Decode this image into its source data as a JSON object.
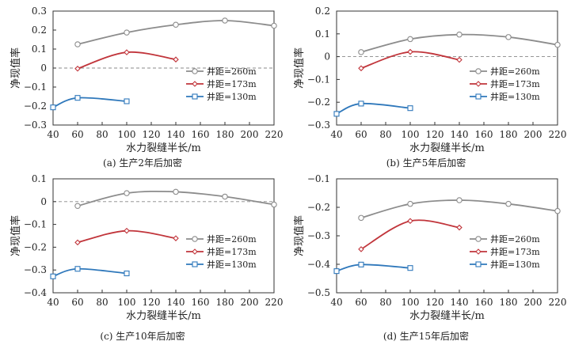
{
  "colors": {
    "s260": "#8c8c8c",
    "s173": "#c1353b",
    "s130": "#2f78bb",
    "axis": "#333333",
    "zero_line": "#888888"
  },
  "chart_data": [
    {
      "type": "line",
      "caption": "(a) 生产2年后加密",
      "xlabel": "水力裂缝半长/m",
      "ylabel": "净现值率",
      "xlim": [
        40,
        220
      ],
      "ylim": [
        -0.3,
        0.3
      ],
      "xticks": [
        "40",
        "60",
        "80",
        "100",
        "120",
        "140",
        "160",
        "180",
        "200",
        "220"
      ],
      "yticks": [
        "-0.3",
        "-0.2",
        "-0.1",
        "0",
        "0.1",
        "0.2",
        "0.3"
      ],
      "zero_line": true,
      "legend": "right-middle",
      "smooth": true,
      "series": [
        {
          "name": "井距=260m",
          "marker": "circle",
          "x": [
            60,
            100,
            140,
            180,
            220
          ],
          "y": [
            0.125,
            0.187,
            0.228,
            0.25,
            0.223
          ]
        },
        {
          "name": "井距=173m",
          "marker": "diamond",
          "x": [
            60,
            100,
            140
          ],
          "y": [
            -0.003,
            0.083,
            0.045
          ]
        },
        {
          "name": "井距=130m",
          "marker": "square",
          "x": [
            40,
            60,
            100
          ],
          "y": [
            -0.207,
            -0.157,
            -0.175
          ]
        }
      ]
    },
    {
      "type": "line",
      "caption": "(b) 生产5年后加密",
      "xlabel": "水力裂缝半长/m",
      "ylabel": "净现值率",
      "xlim": [
        40,
        220
      ],
      "ylim": [
        -0.3,
        0.2
      ],
      "xticks": [
        "40",
        "60",
        "80",
        "100",
        "120",
        "140",
        "160",
        "180",
        "200",
        "220"
      ],
      "yticks": [
        "-0.3",
        "-0.2",
        "-0.1",
        "0",
        "0.1",
        "0.2"
      ],
      "zero_line": true,
      "legend": "right-middle",
      "smooth": true,
      "series": [
        {
          "name": "井距=260m",
          "marker": "circle",
          "x": [
            60,
            100,
            140,
            180,
            220
          ],
          "y": [
            0.02,
            0.077,
            0.097,
            0.086,
            0.052
          ]
        },
        {
          "name": "井距=173m",
          "marker": "diamond",
          "x": [
            60,
            100,
            140
          ],
          "y": [
            -0.051,
            0.021,
            -0.014
          ]
        },
        {
          "name": "井距=130m",
          "marker": "square",
          "x": [
            40,
            60,
            100
          ],
          "y": [
            -0.251,
            -0.206,
            -0.226
          ]
        }
      ]
    },
    {
      "type": "line",
      "caption": "(c) 生产10年后加密",
      "xlabel": "水力裂缝半长/m",
      "ylabel": "净现值率",
      "xlim": [
        40,
        220
      ],
      "ylim": [
        -0.4,
        0.1
      ],
      "xticks": [
        "40",
        "60",
        "80",
        "100",
        "120",
        "140",
        "160",
        "180",
        "200",
        "220"
      ],
      "yticks": [
        "-0.4",
        "-0.3",
        "-0.2",
        "-0.1",
        "0",
        "0.1"
      ],
      "zero_line": true,
      "legend": "right-middle",
      "smooth": true,
      "series": [
        {
          "name": "井距=260m",
          "marker": "circle",
          "x": [
            60,
            100,
            140,
            180,
            220
          ],
          "y": [
            -0.019,
            0.037,
            0.043,
            0.022,
            -0.013
          ]
        },
        {
          "name": "井距=173m",
          "marker": "diamond",
          "x": [
            60,
            100,
            140
          ],
          "y": [
            -0.179,
            -0.128,
            -0.161
          ]
        },
        {
          "name": "井距=130m",
          "marker": "square",
          "x": [
            40,
            60,
            100
          ],
          "y": [
            -0.328,
            -0.295,
            -0.315
          ]
        }
      ]
    },
    {
      "type": "line",
      "caption": "(d) 生产15年后加密",
      "xlabel": "水力裂缝半长/m",
      "ylabel": "净现值率",
      "xlim": [
        40,
        220
      ],
      "ylim": [
        -0.5,
        -0.1
      ],
      "xticks": [
        "40",
        "60",
        "80",
        "100",
        "120",
        "140",
        "160",
        "180",
        "200",
        "220"
      ],
      "yticks": [
        "-0.5",
        "-0.4",
        "-0.3",
        "-0.2",
        "-0.1"
      ],
      "zero_line": false,
      "legend": "right-middle",
      "smooth": true,
      "series": [
        {
          "name": "井距=260m",
          "marker": "circle",
          "x": [
            60,
            100,
            140,
            180,
            220
          ],
          "y": [
            -0.237,
            -0.188,
            -0.175,
            -0.188,
            -0.213
          ]
        },
        {
          "name": "井距=173m",
          "marker": "diamond",
          "x": [
            60,
            100,
            140
          ],
          "y": [
            -0.347,
            -0.248,
            -0.271
          ]
        },
        {
          "name": "井距=130m",
          "marker": "square",
          "x": [
            40,
            60,
            100
          ],
          "y": [
            -0.424,
            -0.401,
            -0.413
          ]
        }
      ]
    }
  ]
}
